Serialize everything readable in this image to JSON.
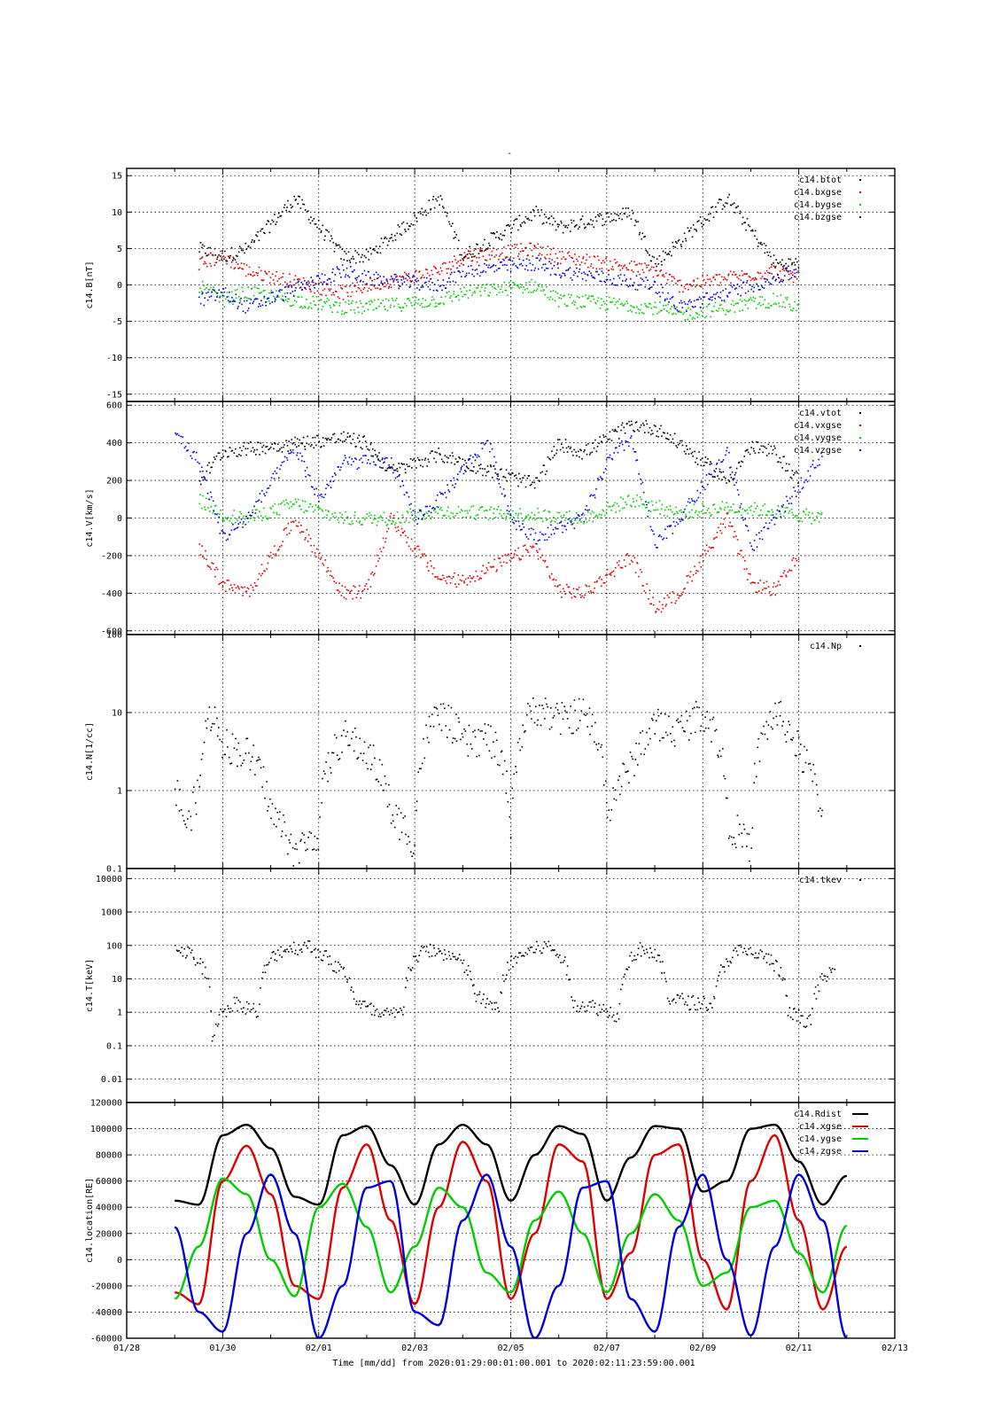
{
  "page": {
    "title": "-",
    "xaxis_label": "Time [mm/dd]  from 2020:01:29:00:01:00.001  to  2020:02:11:23:59:00.001"
  },
  "colors": {
    "black": "#000000",
    "red": "#dd0000",
    "green": "#00cc00",
    "blue": "#0000dd"
  },
  "chart_data": [
    {
      "type": "scatter",
      "ylabel": "c14.B[nT]",
      "ylim": [
        -16,
        16
      ],
      "yscale": "linear",
      "yticks": [
        -15,
        -10,
        -5,
        0,
        5,
        10,
        15
      ],
      "xlim": [
        "01/28",
        "02/13"
      ],
      "grid": true,
      "legend_position": "top-right",
      "series": [
        {
          "name": "c14.btot",
          "color": "black",
          "x": [
            "01/29 12:00",
            "01/30 00:00",
            "01/30 12:00",
            "01/31 12:00",
            "02/01 12:00",
            "02/02 00:00",
            "02/03 12:00",
            "02/04 00:00",
            "02/05 12:00",
            "02/06 00:00",
            "02/07 12:00",
            "02/08 00:00",
            "02/09 12:00",
            "02/10 12:00",
            "02/11 00:00"
          ],
          "y": [
            5,
            4,
            5,
            12,
            4,
            4,
            12,
            4,
            10,
            8,
            10,
            3,
            12,
            3,
            3
          ]
        },
        {
          "name": "c14.bxgse",
          "color": "red",
          "x": [
            "01/29 12:00",
            "01/30 00:00",
            "01/30 12:00",
            "02/01 12:00",
            "02/02 00:00",
            "02/03 12:00",
            "02/04 00:00",
            "02/05 12:00",
            "02/06 00:00",
            "02/08 00:00",
            "02/08 12:00",
            "02/10 12:00",
            "02/11 00:00"
          ],
          "y": [
            3,
            4,
            2,
            -1,
            0,
            2,
            4,
            5,
            4,
            2,
            0,
            2,
            1
          ]
        },
        {
          "name": "c14.bygse",
          "color": "green",
          "x": [
            "01/29 12:00",
            "01/30 00:00",
            "01/30 12:00",
            "02/01 12:00",
            "02/02 00:00",
            "02/03 12:00",
            "02/04 00:00",
            "02/05 12:00",
            "02/06 00:00",
            "02/08 00:00",
            "02/08 12:00",
            "02/10 12:00",
            "02/11 00:00"
          ],
          "y": [
            0,
            -2,
            -1,
            -3,
            -3,
            -2,
            -1,
            0,
            -2,
            -3,
            -4,
            -2,
            -3
          ]
        },
        {
          "name": "c14.bzgse",
          "color": "blue",
          "x": [
            "01/29 12:00",
            "01/30 00:00",
            "01/30 12:00",
            "02/01 12:00",
            "02/02 00:00",
            "02/03 12:00",
            "02/04 00:00",
            "02/05 12:00",
            "02/06 00:00",
            "02/08 00:00",
            "02/08 12:00",
            "02/10 12:00",
            "02/11 00:00"
          ],
          "y": [
            -2,
            -1,
            -3,
            2,
            1,
            0,
            2,
            3,
            2,
            0,
            -3,
            1,
            2
          ]
        }
      ]
    },
    {
      "type": "scatter",
      "ylabel": "c14.V[km/s]",
      "ylim": [
        -620,
        620
      ],
      "yscale": "linear",
      "yticks": [
        -600,
        -400,
        -200,
        0,
        200,
        400,
        600
      ],
      "xlim": [
        "01/28",
        "02/13"
      ],
      "grid": true,
      "legend_position": "top-right",
      "series": [
        {
          "name": "c14.vtot",
          "color": "black",
          "x": [
            "01/29 12:00",
            "01/30 00:00",
            "01/30 12:00",
            "01/31 12:00",
            "02/01 12:00",
            "02/02 00:00",
            "02/02 12:00",
            "02/03 12:00",
            "02/04 00:00",
            "02/05 12:00",
            "02/06 00:00",
            "02/06 12:00",
            "02/07 12:00",
            "02/08 00:00",
            "02/08 12:00",
            "02/09 12:00",
            "02/10 00:00",
            "02/10 12:00",
            "02/11 00:00"
          ],
          "y": [
            200,
            360,
            370,
            400,
            430,
            400,
            250,
            340,
            300,
            180,
            400,
            350,
            500,
            480,
            400,
            200,
            380,
            350,
            200
          ]
        },
        {
          "name": "c14.vxgse",
          "color": "red",
          "x": [
            "01/29 12:00",
            "01/30 00:00",
            "01/30 12:00",
            "01/31 12:00",
            "02/01 12:00",
            "02/02 00:00",
            "02/02 12:00",
            "02/03 12:00",
            "02/04 00:00",
            "02/05 12:00",
            "02/06 00:00",
            "02/06 12:00",
            "02/07 12:00",
            "02/08 00:00",
            "02/08 12:00",
            "02/09 12:00",
            "02/10 00:00",
            "02/10 12:00",
            "02/11 00:00"
          ],
          "y": [
            -150,
            -350,
            -400,
            0,
            -400,
            -380,
            0,
            -320,
            -330,
            -150,
            -380,
            -400,
            -200,
            -480,
            -400,
            0,
            -350,
            -380,
            -200
          ]
        },
        {
          "name": "c14.vygse",
          "color": "green",
          "x": [
            "01/29 12:00",
            "01/30 00:00",
            "01/30 12:00",
            "01/31 12:00",
            "02/01 12:00",
            "02/02 12:00",
            "02/03 12:00",
            "02/05 12:00",
            "02/06 12:00",
            "02/07 12:00",
            "02/08 12:00",
            "02/09 12:00",
            "02/10 12:00",
            "02/11 12:00"
          ],
          "y": [
            100,
            20,
            0,
            80,
            0,
            0,
            40,
            20,
            0,
            100,
            30,
            60,
            40,
            0
          ]
        },
        {
          "name": "c14.vzgse",
          "color": "blue",
          "x": [
            "01/29 00:00",
            "01/29 12:00",
            "01/30 00:00",
            "01/30 12:00",
            "01/31 12:00",
            "02/01 00:00",
            "02/01 12:00",
            "02/02 12:00",
            "02/03 00:00",
            "02/03 12:00",
            "02/04 12:00",
            "02/05 00:00",
            "02/05 12:00",
            "02/06 12:00",
            "02/07 00:00",
            "02/07 12:00",
            "02/08 00:00",
            "02/08 12:00",
            "02/09 12:00",
            "02/10 00:00",
            "02/10 12:00",
            "02/11 12:00"
          ],
          "y": [
            460,
            300,
            -100,
            0,
            380,
            100,
            300,
            300,
            0,
            100,
            420,
            0,
            -100,
            0,
            300,
            430,
            -150,
            0,
            350,
            -150,
            0,
            350
          ]
        }
      ]
    },
    {
      "type": "scatter",
      "ylabel": "c14.N[1/cc]",
      "ylim": [
        0.1,
        100
      ],
      "yscale": "log",
      "yticks": [
        0.1,
        1,
        10,
        100
      ],
      "xlim": [
        "01/28",
        "02/13"
      ],
      "grid": true,
      "legend_position": "top-right",
      "series": [
        {
          "name": "c14.Np",
          "color": "black",
          "x": [
            "01/29 00:00",
            "01/29 06:00",
            "01/29 12:00",
            "01/29 18:00",
            "01/30 00:00",
            "01/30 12:00",
            "01/31 00:00",
            "01/31 12:00",
            "02/01 00:00",
            "02/01 12:00",
            "02/02 00:00",
            "02/02 12:00",
            "02/03 00:00",
            "02/03 12:00",
            "02/04 00:00",
            "02/04 12:00",
            "02/05 00:00",
            "02/05 12:00",
            "02/06 00:00",
            "02/06 12:00",
            "02/07 00:00",
            "02/07 12:00",
            "02/08 00:00",
            "02/08 12:00",
            "02/09 00:00",
            "02/09 12:00",
            "02/10 00:00",
            "02/10 12:00",
            "02/11 00:00",
            "02/11 12:00"
          ],
          "y": [
            1,
            0.3,
            1,
            10,
            4,
            3,
            0.5,
            0.15,
            0.3,
            5,
            3,
            0.5,
            0.2,
            10,
            4,
            5,
            0.3,
            12,
            8,
            10,
            0.5,
            2,
            7,
            6,
            10,
            0.4,
            0.15,
            10,
            3,
            0.3
          ]
        }
      ]
    },
    {
      "type": "scatter",
      "ylabel": "c14.T[keV]",
      "ylim": [
        0.002,
        20000
      ],
      "yscale": "log",
      "yticks": [
        0.01,
        0.1,
        1,
        10,
        100,
        1000,
        10000
      ],
      "xlim": [
        "01/28",
        "02/13"
      ],
      "grid": true,
      "legend_position": "top-right",
      "series": [
        {
          "name": "c14.tkev",
          "color": "black",
          "x": [
            "01/29 00:00",
            "01/29 12:00",
            "01/29 18:00",
            "01/30 06:00",
            "01/30 18:00",
            "01/31 06:00",
            "01/31 18:00",
            "02/01 06:00",
            "02/01 18:00",
            "02/02 06:00",
            "02/02 18:00",
            "02/03 06:00",
            "02/03 18:00",
            "02/04 06:00",
            "02/04 18:00",
            "02/05 06:00",
            "02/05 18:00",
            "02/06 06:00",
            "02/06 18:00",
            "02/07 06:00",
            "02/07 18:00",
            "02/08 06:00",
            "02/08 18:00",
            "02/09 06:00",
            "02/09 18:00",
            "02/10 06:00",
            "02/10 18:00",
            "02/11 06:00",
            "02/11 18:00"
          ],
          "y": [
            100,
            30,
            0.1,
            2,
            1,
            80,
            100,
            30,
            2,
            0.8,
            1,
            80,
            50,
            3,
            1,
            60,
            100,
            2,
            1.5,
            0.8,
            90,
            3,
            2,
            2,
            70,
            50,
            1,
            0.5,
            20
          ]
        }
      ]
    },
    {
      "type": "line",
      "ylabel": "c14.location[RE]",
      "ylim": [
        -60000,
        120000
      ],
      "yscale": "linear",
      "yticks": [
        -60000,
        -40000,
        -20000,
        0,
        20000,
        40000,
        60000,
        80000,
        100000,
        120000
      ],
      "ytick_labels": [
        "-60000",
        "-40000",
        "-20000",
        "0",
        "20000",
        "40000",
        "60000",
        "80000",
        "100000",
        "120000"
      ],
      "xlim": [
        "01/28",
        "02/13"
      ],
      "xticks": [
        "01/28",
        "01/30",
        "02/01",
        "02/03",
        "02/05",
        "02/07",
        "02/09",
        "02/11",
        "02/13"
      ],
      "grid": true,
      "legend_position": "top-right",
      "orbit_period_days": 2.28,
      "series": [
        {
          "name": "c14.Rdist",
          "color": "black",
          "x": [
            "01/29",
            "01/29 12:00",
            "01/30",
            "01/30 12:00",
            "01/31",
            "01/31 12:00",
            "02/01",
            "02/01 12:00",
            "02/02",
            "02/02 12:00",
            "02/03",
            "02/03 12:00",
            "02/04",
            "02/04 12:00",
            "02/05",
            "02/05 12:00",
            "02/06",
            "02/06 12:00",
            "02/07",
            "02/07 12:00",
            "02/08",
            "02/08 12:00",
            "02/09",
            "02/09 12:00",
            "02/10",
            "02/10 12:00",
            "02/11",
            "02/11 12:00",
            "02/12"
          ],
          "y": [
            45000,
            42000,
            95000,
            103000,
            85000,
            48000,
            42000,
            95000,
            102000,
            72000,
            42000,
            88000,
            103000,
            88000,
            45000,
            80000,
            102000,
            96000,
            45000,
            78000,
            102000,
            100000,
            52000,
            60000,
            100000,
            103000,
            75000,
            42000,
            64000
          ]
        },
        {
          "name": "c14.xgse",
          "color": "red",
          "x": [
            "01/29",
            "01/29 12:00",
            "01/30",
            "01/30 12:00",
            "01/31",
            "01/31 12:00",
            "02/01",
            "02/01 12:00",
            "02/02",
            "02/02 12:00",
            "02/03",
            "02/03 12:00",
            "02/04",
            "02/04 12:00",
            "02/05",
            "02/05 12:00",
            "02/06",
            "02/06 12:00",
            "02/07",
            "02/07 12:00",
            "02/08",
            "02/08 12:00",
            "02/09",
            "02/09 12:00",
            "02/10",
            "02/10 12:00",
            "02/11",
            "02/11 12:00",
            "02/12"
          ],
          "y": [
            -25000,
            -34000,
            60000,
            87000,
            50000,
            -20000,
            -30000,
            55000,
            88000,
            30000,
            -34000,
            40000,
            90000,
            60000,
            -30000,
            20000,
            88000,
            75000,
            -30000,
            5000,
            80000,
            88000,
            0,
            -38000,
            60000,
            95000,
            30000,
            -38000,
            10000
          ]
        },
        {
          "name": "c14.ygse",
          "color": "green",
          "x": [
            "01/29",
            "01/29 12:00",
            "01/30",
            "01/30 12:00",
            "01/31",
            "01/31 12:00",
            "02/01",
            "02/01 12:00",
            "02/02",
            "02/02 12:00",
            "02/03",
            "02/03 12:00",
            "02/04",
            "02/04 12:00",
            "02/05",
            "02/05 12:00",
            "02/06",
            "02/06 12:00",
            "02/07",
            "02/07 12:00",
            "02/08",
            "02/08 12:00",
            "02/09",
            "02/09 12:00",
            "02/10",
            "02/10 12:00",
            "02/11",
            "02/11 12:00",
            "02/12"
          ],
          "y": [
            -30000,
            10000,
            62000,
            50000,
            0,
            -28000,
            40000,
            58000,
            25000,
            -25000,
            10000,
            55000,
            40000,
            -10000,
            -25000,
            30000,
            52000,
            20000,
            -25000,
            20000,
            50000,
            30000,
            -20000,
            -10000,
            40000,
            45000,
            5000,
            -25000,
            26000
          ]
        },
        {
          "name": "c14.zgse",
          "color": "blue",
          "x": [
            "01/29",
            "01/29 12:00",
            "01/30",
            "01/30 12:00",
            "01/31",
            "01/31 12:00",
            "02/01",
            "02/01 12:00",
            "02/02",
            "02/02 12:00",
            "02/03",
            "02/03 12:00",
            "02/04",
            "02/04 12:00",
            "02/05",
            "02/05 12:00",
            "02/06",
            "02/06 12:00",
            "02/07",
            "02/07 12:00",
            "02/08",
            "02/08 12:00",
            "02/09",
            "02/09 12:00",
            "02/10",
            "02/10 12:00",
            "02/11",
            "02/11 12:00",
            "02/12"
          ],
          "y": [
            25000,
            -40000,
            -55000,
            20000,
            65000,
            20000,
            -60000,
            -20000,
            55000,
            60000,
            -40000,
            -50000,
            30000,
            65000,
            10000,
            -60000,
            -20000,
            55000,
            60000,
            -30000,
            -55000,
            25000,
            65000,
            0,
            -58000,
            10000,
            65000,
            30000,
            -60000
          ]
        }
      ]
    }
  ]
}
